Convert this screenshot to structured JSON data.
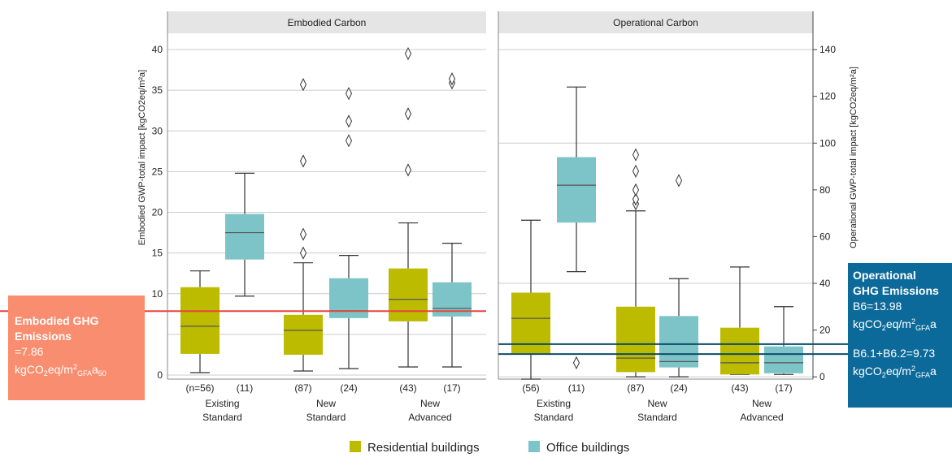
{
  "colors": {
    "residential": "#BDBB00",
    "office": "#7CC4C7",
    "embodied_line": "#E8473B",
    "operational_line": "#0C4D68",
    "embodied_callout": "#F98D6F",
    "operational_callout": "#0C6A9A",
    "strip": "#E5E5E5",
    "grid": "#CCCCCC"
  },
  "chart_data": {
    "type": "box",
    "legend_placement": "bottom-center",
    "grid": true,
    "legend": [
      {
        "series": "residential",
        "label": "Residential buildings"
      },
      {
        "series": "office",
        "label": "Office buildings"
      }
    ],
    "categories": [
      {
        "line1": "Existing",
        "line2": "Standard"
      },
      {
        "line1": "New",
        "line2": "Standard"
      },
      {
        "line1": "New",
        "line2": "Advanced"
      }
    ],
    "panels": [
      {
        "id": "embodied",
        "title": "Embodied Carbon",
        "axis_side": "left",
        "ylabel": "Embodied GWP-total impact [kgCO2eq/m²a]",
        "ylim": [
          -0.5,
          42
        ],
        "ticks": [
          {
            "value": 0,
            "label": "0"
          },
          {
            "value": 10,
            "label": "10"
          },
          {
            "value": 15,
            "label": "15"
          },
          {
            "value": 20,
            "label": "20"
          },
          {
            "value": 25,
            "label": "25"
          },
          {
            "value": 30,
            "label": "30"
          },
          {
            "value": 35,
            "label": "35"
          },
          {
            "value": 40,
            "label": "40"
          }
        ],
        "gridlines": [
          0,
          5,
          10,
          15,
          20,
          25,
          30,
          35,
          40
        ],
        "reference_line": {
          "value": 7.86
        },
        "boxes": [
          {
            "cat": 0,
            "series": "residential",
            "n": "(n=56)",
            "whislo": 0.3,
            "q1": 2.6,
            "med": 6.0,
            "q3": 10.8,
            "whishi": 12.8,
            "fliers": []
          },
          {
            "cat": 0,
            "series": "office",
            "n": "(11)",
            "whislo": 9.7,
            "q1": 14.2,
            "med": 17.5,
            "q3": 19.8,
            "whishi": 24.8,
            "fliers": []
          },
          {
            "cat": 1,
            "series": "residential",
            "n": "(87)",
            "whislo": 0.5,
            "q1": 2.5,
            "med": 5.5,
            "q3": 7.4,
            "whishi": 13.8,
            "fliers": [
              15.0,
              17.3,
              26.3,
              35.7
            ]
          },
          {
            "cat": 1,
            "series": "office",
            "n": "(24)",
            "whislo": 0.8,
            "q1": 7.0,
            "med": 7.9,
            "q3": 11.9,
            "whishi": 14.7,
            "fliers": [
              28.8,
              31.2,
              34.6
            ]
          },
          {
            "cat": 2,
            "series": "residential",
            "n": "(43)",
            "whislo": 1.0,
            "q1": 6.6,
            "med": 9.3,
            "q3": 13.1,
            "whishi": 18.7,
            "fliers": [
              25.2,
              32.1,
              39.5
            ]
          },
          {
            "cat": 2,
            "series": "office",
            "n": "(17)",
            "whislo": 1.0,
            "q1": 7.2,
            "med": 8.2,
            "q3": 11.4,
            "whishi": 16.2,
            "fliers": [
              35.9,
              36.4
            ]
          }
        ]
      },
      {
        "id": "operational",
        "title": "Operational Carbon",
        "axis_side": "right",
        "ylabel": "Operational GWP-total impact [kgCO2eq/m²a]",
        "ylim": [
          -1,
          147
        ],
        "ticks": [
          {
            "value": 0,
            "label": "0"
          },
          {
            "value": 20,
            "label": "20"
          },
          {
            "value": 40,
            "label": "40"
          },
          {
            "value": 60,
            "label": "60"
          },
          {
            "value": 80,
            "label": "80"
          },
          {
            "value": 100,
            "label": "100"
          },
          {
            "value": 120,
            "label": "120"
          },
          {
            "value": 140,
            "label": "140"
          }
        ],
        "gridlines": [
          0,
          40,
          100,
          140
        ],
        "reference_lines": [
          {
            "value": 13.98
          },
          {
            "value": 9.73
          }
        ],
        "boxes": [
          {
            "cat": 0,
            "series": "residential",
            "n": "(56)",
            "whislo": -1.0,
            "q1": 10.0,
            "med": 25.0,
            "q3": 36.0,
            "whishi": 67.0,
            "fliers": []
          },
          {
            "cat": 0,
            "series": "office",
            "n": "(11)",
            "whislo": 45.0,
            "q1": 66.0,
            "med": 82.0,
            "q3": 94.0,
            "whishi": 124.0,
            "fliers": [
              6.0
            ]
          },
          {
            "cat": 1,
            "series": "residential",
            "n": "(87)",
            "whislo": 0.0,
            "q1": 2.0,
            "med": 8.0,
            "q3": 30.0,
            "whishi": 71.0,
            "fliers": [
              74.0,
              76.0,
              80.0,
              88.0,
              95.0
            ]
          },
          {
            "cat": 1,
            "series": "office",
            "n": "(24)",
            "whislo": 0.0,
            "q1": 4.0,
            "med": 6.5,
            "q3": 26.0,
            "whishi": 42.0,
            "fliers": [
              84.0
            ]
          },
          {
            "cat": 2,
            "series": "residential",
            "n": "(43)",
            "whislo": 1.0,
            "q1": 1.0,
            "med": 6.0,
            "q3": 21.0,
            "whishi": 47.0,
            "fliers": []
          },
          {
            "cat": 2,
            "series": "office",
            "n": "(17)",
            "whislo": 1.0,
            "q1": 1.5,
            "med": 6.0,
            "q3": 13.0,
            "whishi": 30.0,
            "fliers": []
          }
        ]
      }
    ]
  },
  "callouts": {
    "embodied": {
      "bold1": "Embodied GHG",
      "bold2": "Emissions",
      "value": "=7.86",
      "unit_main": "kgCO",
      "unit_sub1": "2",
      "unit_mid": "eq/m",
      "unit_sup": "2",
      "unit_sub2": "GFA",
      "unit_end": "a",
      "unit_sub3": "50"
    },
    "operational": {
      "bold1": "Operational",
      "bold2": "GHG Emissions",
      "b6": "B6=13.98",
      "unit_main": "kgCO",
      "unit_sub1": "2",
      "unit_mid": "eq/m",
      "unit_sup": "2",
      "unit_sub2": "GFA",
      "unit_end": "a",
      "b61": "B6.1+B6.2=9.73",
      "unit2_end": "a"
    }
  }
}
